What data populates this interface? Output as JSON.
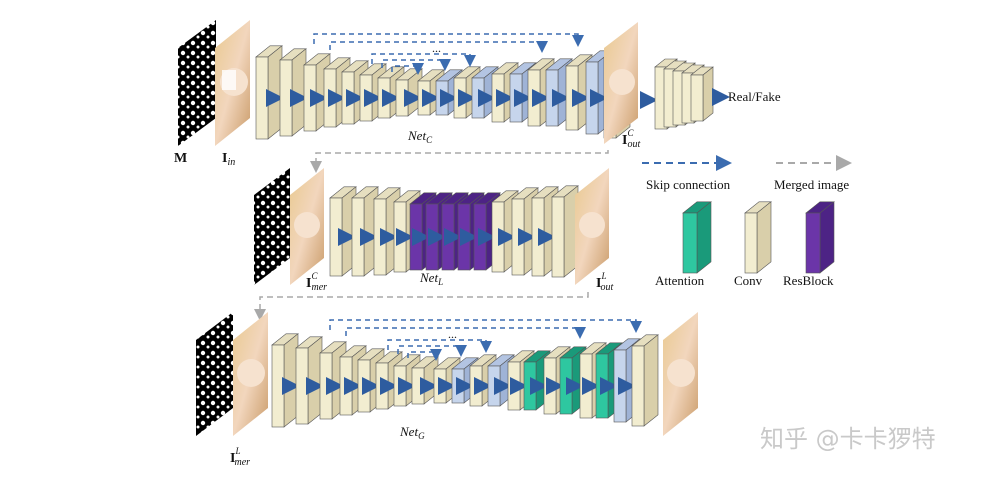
{
  "diagram": {
    "nets": {
      "coarse": {
        "name": "Net",
        "sub": "C"
      },
      "local": {
        "name": "Net",
        "sub": "L"
      },
      "global": {
        "name": "Net",
        "sub": "G"
      }
    },
    "images": {
      "mask": "M",
      "input": {
        "base": "I",
        "sub": "in"
      },
      "coarse_out": {
        "base": "I",
        "sup": "C",
        "sub": "out"
      },
      "coarse_mer": {
        "base": "I",
        "sup": "C",
        "sub": "mer"
      },
      "local_out": {
        "base": "I",
        "sup": "L",
        "sub": "out"
      },
      "local_mer": {
        "base": "I",
        "sup": "L",
        "sub": "mer"
      }
    },
    "discriminator_output": "Real/Fake",
    "ellipsis": "...",
    "legend": {
      "skip_connection": "Skip connection",
      "merged_image": "Merged image",
      "attention": "Attention",
      "conv": "Conv",
      "resblock": "ResBlock"
    },
    "colors": {
      "conv_front": "#f2edd0",
      "conv_side": "#d9cfaa",
      "conv_top": "#e6dfc0",
      "attention_front": "#2ec7a0",
      "attention_side": "#1a9a7a",
      "resblock_front": "#6b35a8",
      "resblock_side": "#4d2385",
      "skip_feature": "#c6d5ec",
      "skip_arrow": "#3b6cb0",
      "merge_arrow": "#a9a9a9",
      "flow_arrow": "#2e5c9f"
    }
  },
  "watermark": "知乎 @卡卡猡特"
}
